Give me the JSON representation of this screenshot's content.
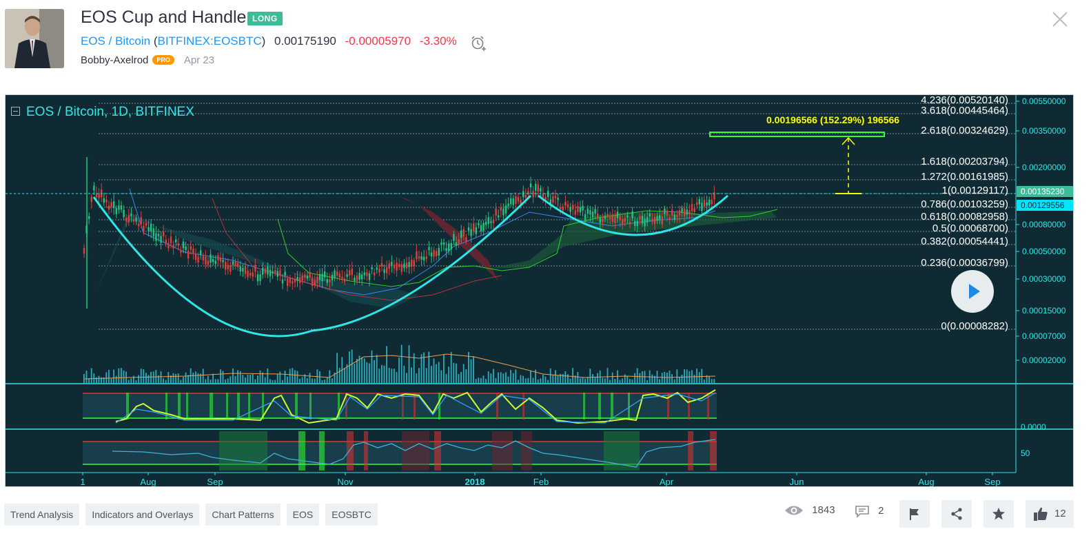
{
  "header": {
    "title": "EOS Cup and Handle",
    "badge": "LONG",
    "symbol_name": "EOS / Bitcoin",
    "symbol_open": " (",
    "symbol_ticker": "BITFINEX:EOSBTC",
    "symbol_close": ")",
    "price": "0.00175190",
    "change": "-0.00005970",
    "change_pct": "-3.30%",
    "author": "Bobby-Axelrod",
    "pro_label": "PRO",
    "date": "Apr 23"
  },
  "chart": {
    "legend": "EOS / Bitcoin, 1D, BITFINEX",
    "target_label": "0.00196566 (152.29%) 196566",
    "fib_levels": [
      "4.236(0.00520140)",
      "3.618(0.00445464)",
      "2.618(0.00324629)",
      "1.618(0.00203794)",
      "1.272(0.00161985)",
      "1(0.00129117)",
      "0.786(0.00103259)",
      "0.618(0.00082958)",
      "0.5(0.00068700)",
      "0.382(0.00054441)",
      "0.236(0.00036799)",
      "0(0.00008282)"
    ],
    "price_ticks": [
      "0.00550000",
      "0.00350000",
      "0.00200000",
      "0.00080000",
      "0.00050000",
      "0.00030000",
      "0.00015000",
      "0.00007000",
      "0.00002000"
    ],
    "price_tag_green": "0.00135230",
    "price_tag_cyan": "0.00129556",
    "osc1_tick": "0.0000",
    "osc2_tick": "50",
    "time_ticks": [
      "1",
      "Aug",
      "Sep",
      "Nov",
      "2018",
      "Feb",
      "Apr",
      "Jun",
      "Aug",
      "Sep"
    ],
    "colors": {
      "background": "#0f2a33",
      "cup_line": "#2ee6e6",
      "fib_text": "#ffffff",
      "target": "#ffff00",
      "box": "#33ff33",
      "up_candle": "#26c281",
      "down_candle": "#e0403a"
    }
  },
  "tags": [
    "Trend Analysis",
    "Indicators and Overlays",
    "Chart Patterns",
    "EOS",
    "EOSBTC"
  ],
  "stats": {
    "views": "1843",
    "comments": "2",
    "likes": "12"
  },
  "icons": {
    "alarm": "alarm-clock-plus-icon",
    "close": "close-icon",
    "play": "play-icon",
    "eye": "eye-icon",
    "comment": "comment-icon",
    "flag": "flag-icon",
    "share": "share-icon",
    "star": "star-icon",
    "like": "thumbs-up-icon"
  }
}
